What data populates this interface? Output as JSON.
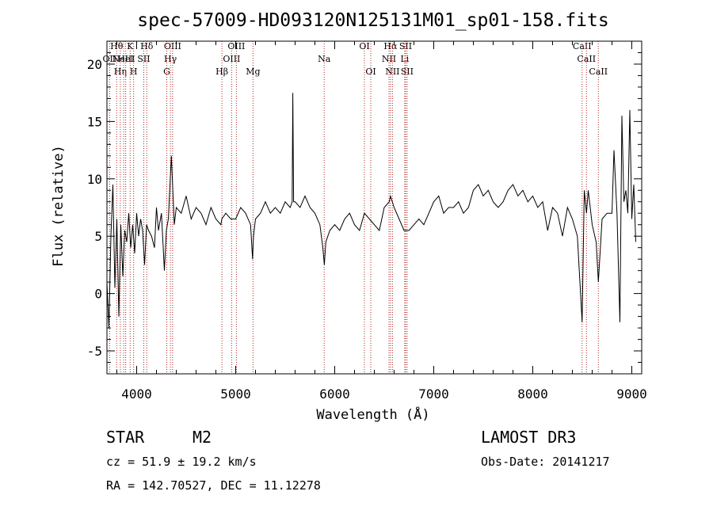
{
  "chart_data": {
    "type": "line",
    "title": "spec-57009-HD093120N125131M01_sp01-158.fits",
    "xlabel": "Wavelength (Å)",
    "ylabel": "Flux (relative)",
    "xlim": [
      3700,
      9100
    ],
    "ylim": [
      -7,
      22
    ],
    "xticks": [
      4000,
      5000,
      6000,
      7000,
      8000,
      9000
    ],
    "yticks": [
      -5,
      0,
      5,
      10,
      15,
      20
    ],
    "series": [
      {
        "name": "flux",
        "x": [
          3700,
          3720,
          3740,
          3760,
          3780,
          3800,
          3820,
          3840,
          3860,
          3880,
          3900,
          3920,
          3940,
          3960,
          3980,
          4000,
          4020,
          4040,
          4060,
          4080,
          4100,
          4120,
          4150,
          4180,
          4200,
          4220,
          4250,
          4280,
          4300,
          4320,
          4350,
          4380,
          4400,
          4450,
          4500,
          4550,
          4600,
          4650,
          4700,
          4750,
          4800,
          4850,
          4860,
          4900,
          4950,
          5000,
          5050,
          5100,
          5150,
          5170,
          5180,
          5200,
          5250,
          5300,
          5350,
          5400,
          5450,
          5500,
          5550,
          5570,
          5577,
          5585,
          5600,
          5650,
          5700,
          5750,
          5800,
          5850,
          5880,
          5895,
          5910,
          5950,
          6000,
          6050,
          6100,
          6150,
          6200,
          6250,
          6300,
          6350,
          6400,
          6450,
          6500,
          6550,
          6563,
          6600,
          6650,
          6700,
          6750,
          6800,
          6850,
          6900,
          6950,
          7000,
          7050,
          7100,
          7150,
          7200,
          7250,
          7300,
          7350,
          7400,
          7450,
          7500,
          7550,
          7600,
          7650,
          7700,
          7750,
          7800,
          7850,
          7900,
          7950,
          8000,
          8050,
          8100,
          8150,
          8200,
          8250,
          8300,
          8350,
          8400,
          8450,
          8498,
          8520,
          8542,
          8560,
          8600,
          8640,
          8662,
          8700,
          8750,
          8800,
          8820,
          8850,
          8880,
          8900,
          8920,
          8940,
          8960,
          8980,
          9000,
          9020,
          9040
        ],
        "values": [
          1.0,
          -3.0,
          5.0,
          9.5,
          0.5,
          6.5,
          -2.0,
          6.0,
          1.5,
          5.5,
          4.5,
          7.0,
          4.0,
          6.0,
          3.5,
          7.0,
          5.0,
          6.5,
          5.5,
          2.5,
          6.0,
          5.5,
          5.0,
          4.0,
          7.5,
          5.5,
          7.0,
          2.0,
          5.5,
          6.5,
          12.0,
          6.0,
          7.5,
          7.0,
          8.5,
          6.5,
          7.5,
          7.0,
          6.0,
          7.5,
          6.5,
          6.0,
          6.5,
          7.0,
          6.5,
          6.5,
          7.5,
          7.0,
          6.0,
          3.0,
          5.0,
          6.5,
          7.0,
          8.0,
          7.0,
          7.5,
          7.0,
          8.0,
          7.5,
          8.0,
          17.5,
          8.0,
          8.0,
          7.5,
          8.5,
          7.5,
          7.0,
          6.0,
          4.0,
          2.5,
          4.5,
          5.5,
          6.0,
          5.5,
          6.5,
          7.0,
          6.0,
          5.5,
          7.0,
          6.5,
          6.0,
          5.5,
          7.5,
          8.0,
          8.5,
          7.5,
          6.5,
          5.5,
          5.5,
          6.0,
          6.5,
          6.0,
          7.0,
          8.0,
          8.5,
          7.0,
          7.5,
          7.5,
          8.0,
          7.0,
          7.5,
          9.0,
          9.5,
          8.5,
          9.0,
          8.0,
          7.5,
          8.0,
          9.0,
          9.5,
          8.5,
          9.0,
          8.0,
          8.5,
          7.5,
          8.0,
          5.5,
          7.5,
          7.0,
          5.0,
          7.5,
          6.5,
          5.0,
          -2.5,
          9.0,
          7.0,
          9.0,
          6.0,
          4.5,
          1.0,
          6.5,
          7.0,
          7.0,
          12.5,
          7.0,
          -2.5,
          15.5,
          8.0,
          9.0,
          7.0,
          16.0,
          6.5,
          9.5,
          4.5
        ],
        "color": "#000000"
      }
    ],
    "line_markers": [
      {
        "wl": 3727,
        "label": "OII",
        "row": 2
      },
      {
        "wl": 3798,
        "label": "Hθ",
        "row": 1
      },
      {
        "wl": 3835,
        "label": "Hη",
        "row": 3
      },
      {
        "wl": 3869,
        "label": "NeIII",
        "row": 2
      },
      {
        "wl": 3889,
        "label": "HeI",
        "row": 2
      },
      {
        "wl": 3934,
        "label": "K",
        "row": 1
      },
      {
        "wl": 3969,
        "label": "H",
        "row": 3
      },
      {
        "wl": 4072,
        "label": "SII",
        "row": 2
      },
      {
        "wl": 4102,
        "label": "Hδ",
        "row": 1
      },
      {
        "wl": 4304,
        "label": "G",
        "row": 3
      },
      {
        "wl": 4341,
        "label": "Hγ",
        "row": 2
      },
      {
        "wl": 4363,
        "label": "OIII",
        "row": 1
      },
      {
        "wl": 4861,
        "label": "Hβ",
        "row": 3
      },
      {
        "wl": 4959,
        "label": "OIII",
        "row": 2
      },
      {
        "wl": 5007,
        "label": "OIII",
        "row": 1
      },
      {
        "wl": 5175,
        "label": "Mg",
        "row": 3
      },
      {
        "wl": 5894,
        "label": "Na",
        "row": 2
      },
      {
        "wl": 6300,
        "label": "OI",
        "row": 1
      },
      {
        "wl": 6364,
        "label": "OI",
        "row": 3
      },
      {
        "wl": 6548,
        "label": "NII",
        "row": 2
      },
      {
        "wl": 6563,
        "label": "Hα",
        "row": 1
      },
      {
        "wl": 6583,
        "label": "NII",
        "row": 3
      },
      {
        "wl": 6707,
        "label": "Li",
        "row": 2
      },
      {
        "wl": 6716,
        "label": "SII",
        "row": 1
      },
      {
        "wl": 6731,
        "label": "SII",
        "row": 3
      },
      {
        "wl": 8498,
        "label": "CaII",
        "row": 1
      },
      {
        "wl": 8542,
        "label": "CaII",
        "row": 2
      },
      {
        "wl": 8662,
        "label": "CaII",
        "row": 3
      }
    ],
    "marker_color": "#b22222"
  },
  "info": {
    "class": "STAR",
    "subclass": "M2",
    "survey": "LAMOST DR3",
    "cz": "cz = 51.9 ± 19.2 km/s",
    "obs_date": "Obs-Date: 20141217",
    "radec": "RA = 142.70527, DEC =  11.12278"
  }
}
